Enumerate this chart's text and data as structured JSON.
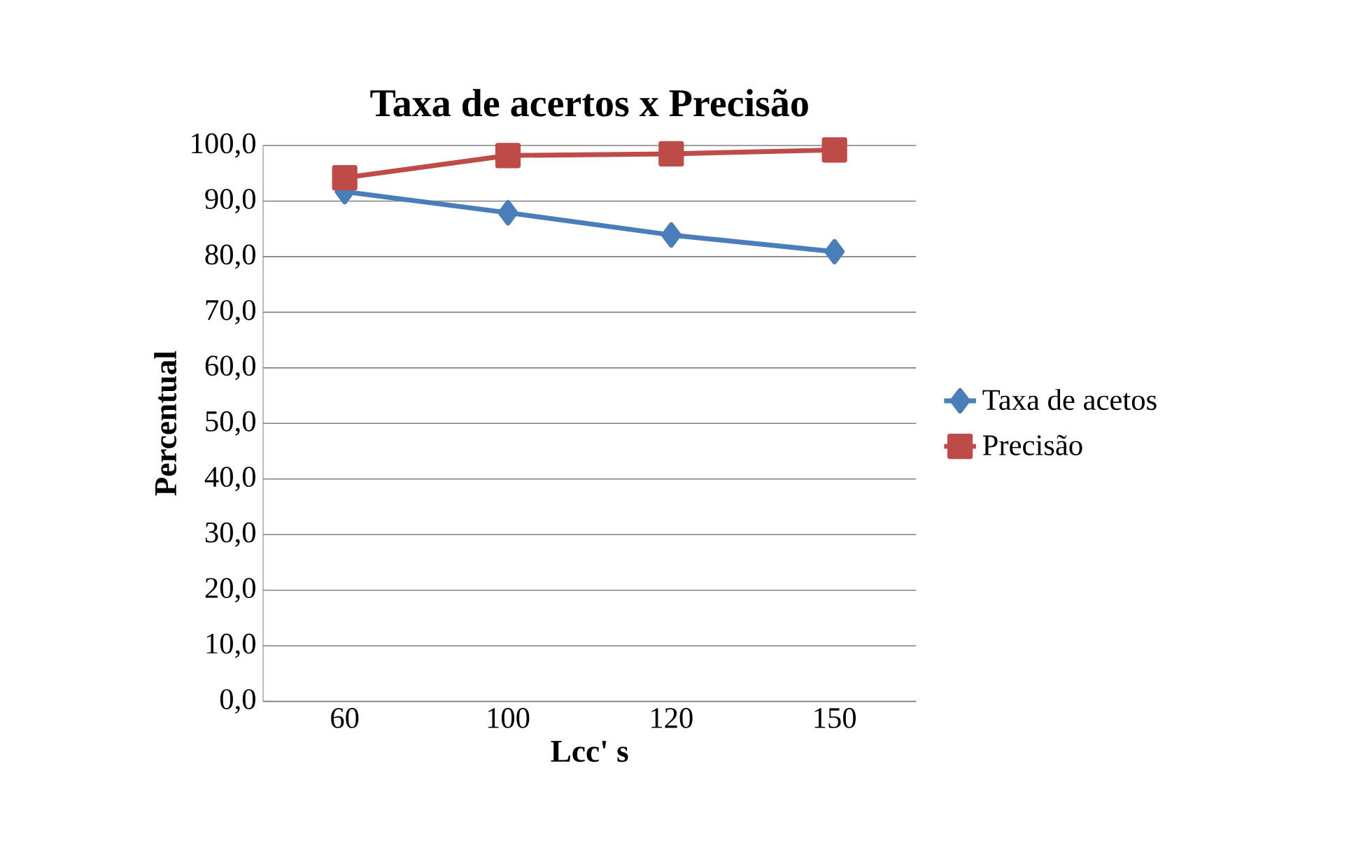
{
  "chart_data": {
    "type": "line",
    "title": "Taxa de acertos x Precisão",
    "xlabel": "Lcc' s",
    "ylabel": "Percentual",
    "categories": [
      "60",
      "100",
      "120",
      "150"
    ],
    "series": [
      {
        "name": "Taxa de acetos",
        "color": "#4a7ebb",
        "marker": "diamond",
        "values": [
          91.7,
          87.9,
          83.9,
          80.9
        ]
      },
      {
        "name": "Precisão",
        "color": "#be4b48",
        "marker": "square",
        "values": [
          94.2,
          98.2,
          98.5,
          99.2
        ]
      }
    ],
    "ylim": [
      0,
      100
    ],
    "yticks": [
      {
        "value": 0,
        "label": "0,0"
      },
      {
        "value": 10,
        "label": "10,0"
      },
      {
        "value": 20,
        "label": "20,0"
      },
      {
        "value": 30,
        "label": "30,0"
      },
      {
        "value": 40,
        "label": "40,0"
      },
      {
        "value": 50,
        "label": "50,0"
      },
      {
        "value": 60,
        "label": "60,0"
      },
      {
        "value": 70,
        "label": "70,0"
      },
      {
        "value": 80,
        "label": "80,0"
      },
      {
        "value": 90,
        "label": "90,0"
      },
      {
        "value": 100,
        "label": "100,0"
      }
    ],
    "grid": "y",
    "legend": "right",
    "line_style": "solid"
  }
}
